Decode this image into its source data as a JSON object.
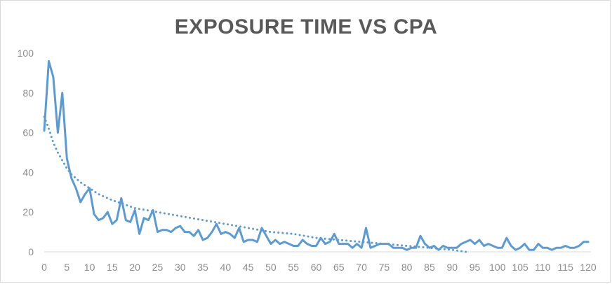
{
  "chart_data": {
    "type": "line",
    "title": "EXPOSURE TIME VS CPA",
    "xlabel": "",
    "ylabel": "",
    "xlim": [
      0,
      120
    ],
    "ylim": [
      0,
      100
    ],
    "x_ticks": [
      0,
      5,
      10,
      15,
      20,
      25,
      30,
      35,
      40,
      45,
      50,
      55,
      60,
      65,
      70,
      75,
      80,
      85,
      90,
      95,
      100,
      105,
      110,
      115,
      120
    ],
    "y_ticks": [
      0,
      20,
      40,
      60,
      80,
      100
    ],
    "grid": false,
    "legend": "none",
    "colors": {
      "series": "#5b9bd5",
      "trendline": "#5b9bd5",
      "axis": "#d9d9d9",
      "tick_text": "#8c8c8c",
      "title": "#595959"
    },
    "series": [
      {
        "x": [
          0,
          1,
          2,
          3,
          4,
          5,
          6,
          7,
          8,
          9,
          10,
          11,
          12,
          13,
          14,
          15,
          16,
          17,
          18,
          19,
          20,
          21,
          22,
          23,
          24,
          25,
          26,
          27,
          28,
          29,
          30,
          31,
          32,
          33,
          34,
          35,
          36,
          37,
          38,
          39,
          40,
          41,
          42,
          43,
          44,
          45,
          46,
          47,
          48,
          49,
          50,
          51,
          52,
          53,
          54,
          55,
          56,
          57,
          58,
          59,
          60,
          61,
          62,
          63,
          64,
          65,
          66,
          67,
          68,
          69,
          70,
          71,
          72,
          73,
          74,
          75,
          76,
          77,
          78,
          79,
          80,
          81,
          82,
          83,
          84,
          85,
          86,
          87,
          88,
          89,
          90,
          91,
          92,
          93,
          94,
          95,
          96,
          97,
          98,
          99,
          100,
          101,
          102,
          103,
          104,
          105,
          106,
          107,
          108,
          109,
          110,
          111,
          112,
          113,
          114,
          115,
          116,
          117,
          118,
          119,
          120
        ],
        "values": [
          61,
          96,
          88,
          60,
          80,
          47,
          37,
          32,
          25,
          29,
          32,
          19,
          16,
          17,
          20,
          14,
          16,
          27,
          16,
          15,
          21,
          9,
          17,
          16,
          21,
          10,
          11,
          11,
          10,
          12,
          13,
          10,
          10,
          8,
          11,
          6,
          7,
          10,
          14,
          9,
          10,
          9,
          7,
          12,
          5,
          6,
          6,
          5,
          12,
          8,
          4,
          6,
          4,
          5,
          4,
          3,
          3,
          6,
          4,
          3,
          3,
          7,
          4,
          5,
          9,
          4,
          4,
          4,
          2,
          4,
          2,
          12,
          2,
          3,
          4,
          4,
          4,
          2,
          2,
          2,
          1,
          2,
          2,
          8,
          4,
          2,
          3,
          1,
          3,
          2,
          2,
          2,
          4,
          5,
          6,
          4,
          6,
          3,
          4,
          3,
          2,
          2,
          7,
          3,
          1,
          2,
          4,
          1,
          1,
          4,
          2,
          2,
          1,
          2,
          2,
          3,
          2,
          2,
          3,
          5,
          5
        ]
      }
    ],
    "trendline": {
      "type": "logarithmic",
      "style": "dotted",
      "x": [
        0,
        1,
        2,
        3,
        4,
        5,
        6,
        8,
        10,
        12,
        15,
        20,
        25,
        30,
        35,
        40,
        45,
        50,
        55,
        60,
        65,
        70,
        75,
        80,
        85,
        90,
        93
      ],
      "values": [
        68,
        62,
        55,
        50,
        46,
        42,
        39,
        35,
        32,
        29,
        26,
        22,
        20,
        18,
        16,
        14,
        12,
        10,
        9,
        7,
        6,
        5,
        4,
        3,
        2,
        1,
        0
      ]
    }
  }
}
